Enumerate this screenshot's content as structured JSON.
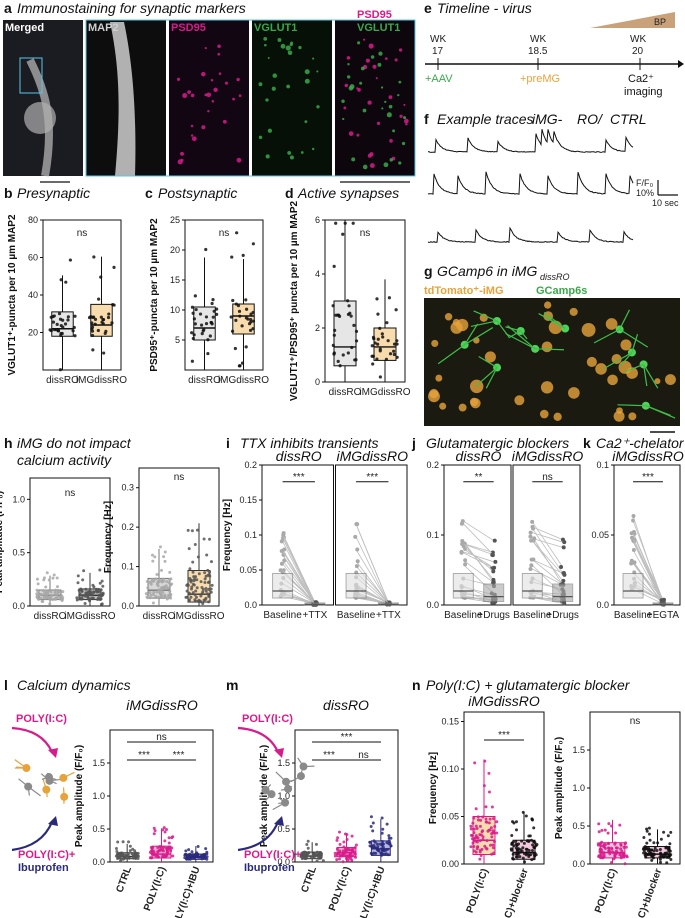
{
  "colors": {
    "magenta": "#d81b8c",
    "green": "#3aa84a",
    "orange": "#e7a33b",
    "navy": "#2a2a7c",
    "gray": "#9a9a9a",
    "black": "#111111"
  },
  "panel_a": {
    "letter": "a",
    "title": "Immunostaining for synaptic markers",
    "tiles": [
      "Merged",
      "MAP2",
      "PSD95",
      "VGLUT1",
      "PSD95",
      "VGLUT1"
    ]
  },
  "panel_e": {
    "letter": "e",
    "title": "Timeline - virus",
    "weeks": [
      "WK",
      "17",
      "WK",
      "18.5",
      "WK",
      "20"
    ],
    "events": [
      "+AAV",
      "+preMG",
      "Ca2⁺",
      "imaging"
    ],
    "bp_label": "BP"
  },
  "panel_f": {
    "letter": "f",
    "title_a": "Example traces",
    "title_b": "iMG-",
    "title_c": "RO/",
    "title_d": "CTRL",
    "scale_y": "F/F₀",
    "scale_pct": "10%",
    "scale_t": "10 sec"
  },
  "panel_g": {
    "letter": "g",
    "title": "GCamp6 in iMG",
    "sub": "dissRO",
    "legend_a": "tdTomato⁺-iMG",
    "legend_b": "GCamp6s"
  },
  "chart_data": [
    {
      "id": "b",
      "type": "box",
      "title": "Presynaptic",
      "ylabel": "VGLUT1⁺-puncta per 10 µm MAP2",
      "ylim": [
        0,
        80
      ],
      "ticks": [
        20,
        40,
        60,
        80
      ],
      "categories": [
        "dissRO",
        "iMG-dissRO"
      ],
      "medians": [
        22,
        24
      ],
      "q1": [
        18,
        18
      ],
      "q3": [
        31,
        35
      ],
      "significance": "ns"
    },
    {
      "id": "c",
      "type": "box",
      "title": "Postsynaptic",
      "ylabel": "PSD95⁺-puncta per 10 µm MAP2",
      "ylim": [
        0,
        25
      ],
      "ticks": [
        5,
        10,
        15,
        20,
        25
      ],
      "categories": [
        "dissRO",
        "iMG-dissRO"
      ],
      "medians": [
        7,
        9
      ],
      "q1": [
        5,
        6
      ],
      "q3": [
        10.5,
        11
      ],
      "significance": "ns"
    },
    {
      "id": "d",
      "type": "box",
      "title": "Active synapses",
      "ylabel": "VGLUT1⁺/PSD95⁺ puncta per 10 µm MAP2",
      "ylim": [
        0,
        6
      ],
      "ticks": [
        0,
        2,
        4,
        6
      ],
      "categories": [
        "dissRO",
        "iMG-dissRO"
      ],
      "medians": [
        1.3,
        1.3
      ],
      "q1": [
        0.6,
        0.8
      ],
      "q3": [
        3,
        2
      ],
      "significance": "ns"
    },
    {
      "id": "h1",
      "type": "box",
      "title": "iMG do not impact calcium activity",
      "ylabel": "Peak amplitude (F/F₀)",
      "ylim": [
        0,
        1.2
      ],
      "ticks": [
        0,
        0.5,
        1.0
      ],
      "categories": [
        "dissRO",
        "iMG-dissRO"
      ],
      "medians": [
        0.1,
        0.1
      ],
      "q1": [
        0.06,
        0.06
      ],
      "q3": [
        0.15,
        0.16
      ],
      "significance": "ns"
    },
    {
      "id": "h2",
      "type": "box",
      "ylabel": "Frequency [Hz]",
      "ylim": [
        0,
        0.35
      ],
      "ticks": [
        0,
        0.1,
        0.2,
        0.3
      ],
      "categories": [
        "dissRO",
        "iMG-dissRO"
      ],
      "medians": [
        0.04,
        0.03
      ],
      "q1": [
        0.02,
        0.01
      ],
      "q3": [
        0.07,
        0.09
      ],
      "significance": "ns"
    },
    {
      "id": "i",
      "type": "paired",
      "title": "TTX inhibits transients",
      "ylabel": "Frequency [Hz]",
      "ylim": [
        0,
        0.2
      ],
      "ticks": [
        0,
        0.05,
        0.1,
        0.15,
        0.2
      ],
      "subpanels": [
        {
          "label": "dissRO",
          "x": [
            "Baseline",
            "+TTX"
          ],
          "sig": "***"
        },
        {
          "label": "iMG-dissRO",
          "x": [
            "Baseline",
            "+TTX"
          ],
          "sig": "***"
        }
      ]
    },
    {
      "id": "j",
      "type": "paired",
      "title": "Glutamatergic blockers",
      "ylim": [
        0,
        0.2
      ],
      "ticks": [
        0,
        0.1,
        0.2
      ],
      "subpanels": [
        {
          "label": "dissRO",
          "x": [
            "Baseline",
            "+Drugs"
          ],
          "sig": "**"
        },
        {
          "label": "iMG-dissRO",
          "x": [
            "Baseline",
            "+Drugs"
          ],
          "sig": "ns"
        }
      ]
    },
    {
      "id": "k",
      "type": "paired",
      "title": "Ca2⁺-chelator",
      "ylim": [
        0,
        0.1
      ],
      "ticks": [
        0,
        0.05,
        0.1
      ],
      "subpanels": [
        {
          "label": "iMG-dissRO",
          "x": [
            "Baseline",
            "+EGTA"
          ],
          "sig": "***"
        }
      ]
    },
    {
      "id": "l",
      "type": "box",
      "title": "Calcium dynamics",
      "ylabel": "Peak amplitude (F/F₀)",
      "ylim": [
        0,
        2
      ],
      "ticks": [
        0,
        0.5,
        1.0,
        1.5
      ],
      "categories": [
        "CTRL",
        "POLY(I:C)",
        "POLY(I:C)+IBU"
      ],
      "medians": [
        0.08,
        0.12,
        0.07
      ],
      "q1": [
        0.05,
        0.06,
        0.04
      ],
      "q3": [
        0.14,
        0.24,
        0.12
      ],
      "significance": [
        "***",
        "ns",
        "***"
      ]
    },
    {
      "id": "m",
      "type": "box",
      "ylabel": "Peak amplitude (F/F₀)",
      "ylim": [
        0,
        2
      ],
      "ticks": [
        0,
        0.5,
        1.0,
        1.5
      ],
      "categories": [
        "CTRL",
        "POLY(I:C)",
        "POLY(I:C)+IBU"
      ],
      "medians": [
        0.09,
        0.14,
        0.2
      ],
      "q1": [
        0.05,
        0.08,
        0.1
      ],
      "q3": [
        0.15,
        0.22,
        0.32
      ],
      "significance": [
        "***",
        "***",
        "ns"
      ]
    },
    {
      "id": "n1",
      "type": "box",
      "title": "Poly(I:C) + glutamatergic blocker",
      "ylabel": "Frequency [Hz]",
      "ylim": [
        0,
        0.16
      ],
      "ticks": [
        0,
        0.05,
        0.1,
        0.15
      ],
      "categories": [
        "POLY(I:C)",
        "POLY(I:C)+blocker"
      ],
      "medians": [
        0.025,
        0.012
      ],
      "q1": [
        0.01,
        0.005
      ],
      "q3": [
        0.05,
        0.025
      ],
      "significance": "***"
    },
    {
      "id": "n2",
      "type": "box",
      "ylabel": "Peak amplitude (F/F₀)",
      "ylim": [
        0,
        2
      ],
      "ticks": [
        0,
        0.5,
        1.0,
        1.5
      ],
      "categories": [
        "POLY(I:C)",
        "POLY(I:C)+blocker"
      ],
      "medians": [
        0.15,
        0.13
      ],
      "q1": [
        0.08,
        0.08
      ],
      "q3": [
        0.28,
        0.23
      ],
      "significance": "ns"
    }
  ],
  "texts": {
    "b_letter": "b",
    "c_letter": "c",
    "d_letter": "d",
    "h_letter": "h",
    "i_letter": "i",
    "j_letter": "j",
    "k_letter": "k",
    "l_letter": "l",
    "m_letter": "m",
    "n_letter": "n",
    "h_title_1": "iMG do not impact",
    "h_title_2": "calcium activity",
    "i_title": "TTX inhibits transients",
    "j_title": "Glutamatergic blockers",
    "k_title": "Ca2⁺-chelator",
    "l_title": "Calcium dynamics",
    "n_title": "Poly(I:C) + glutamatergic blocker",
    "ro": "RO",
    "diss": "diss",
    "img": "iMG-",
    "imgdiss": "iMGdiss",
    "polyic": "POLY(I:C)",
    "polyic_plus": "POLY(I:C)+",
    "ibuprofen": "Ibuprofen",
    "baseline": "Baseline",
    "ttx": "+TTX",
    "drugs": "+Drugs",
    "egta": "+EGTA",
    "ctrl": "CTRL",
    "ibu": "+IBU",
    "blocker": "+blocker"
  }
}
